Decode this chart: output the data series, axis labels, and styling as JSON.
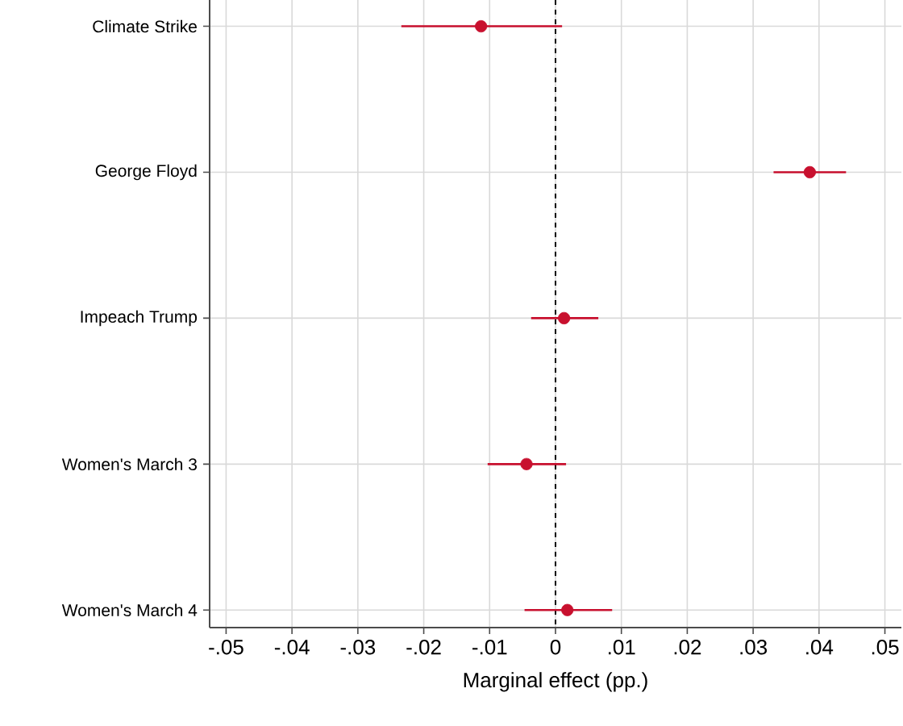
{
  "chart_data": {
    "type": "scatter",
    "orientation": "horizontal",
    "xlabel": "Marginal effect (pp.)",
    "categories": [
      "Climate Strike",
      "George Floyd",
      "Impeach Trump",
      "Women's March 3",
      "Women's March 4"
    ],
    "series": [
      {
        "color": "#c8102e",
        "values": [
          -0.0113,
          0.0386,
          0.0013,
          -0.0044,
          0.0018
        ],
        "errors": [
          [
            -0.0234,
            0.001
          ],
          [
            0.0331,
            0.0441
          ],
          [
            -0.0037,
            0.0065
          ],
          [
            -0.0103,
            0.0016
          ],
          [
            -0.0047,
            0.0086
          ]
        ]
      }
    ],
    "xlim": [
      -0.0525,
      0.0525
    ],
    "xticks": [
      {
        "value": -0.05,
        "label": "-.05"
      },
      {
        "value": -0.04,
        "label": "-.04"
      },
      {
        "value": -0.03,
        "label": "-.03"
      },
      {
        "value": -0.02,
        "label": "-.02"
      },
      {
        "value": -0.01,
        "label": "-.01"
      },
      {
        "value": 0,
        "label": "0"
      },
      {
        "value": 0.01,
        "label": ".01"
      },
      {
        "value": 0.02,
        "label": ".02"
      },
      {
        "value": 0.03,
        "label": ".03"
      },
      {
        "value": 0.04,
        "label": ".04"
      },
      {
        "value": 0.05,
        "label": ".05"
      }
    ],
    "ref_lines": [
      {
        "axis": "x",
        "value": 0,
        "color": "#000000",
        "line_style": "dashed"
      }
    ],
    "grid": true,
    "marker": "circle"
  }
}
